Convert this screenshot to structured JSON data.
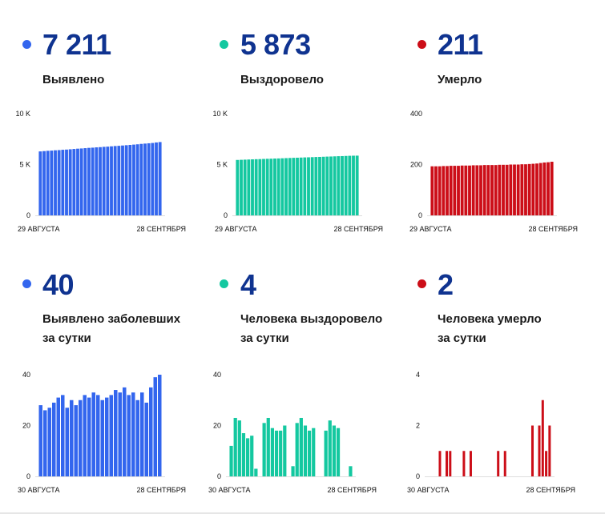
{
  "panels": [
    {
      "value": "7 211",
      "label1": "Выявлено",
      "label2": "",
      "color": "#3366ee",
      "chart_data": {
        "type": "bar",
        "y_ticks": [
          "10 K",
          "5 K",
          "0"
        ],
        "ylim": [
          0,
          10000
        ],
        "x_labels": [
          "29 АВГУСТА",
          "28 СЕНТЯБРЯ"
        ],
        "values": [
          6290,
          6320,
          6350,
          6370,
          6400,
          6420,
          6450,
          6470,
          6500,
          6530,
          6560,
          6580,
          6610,
          6640,
          6660,
          6690,
          6710,
          6740,
          6760,
          6790,
          6820,
          6840,
          6870,
          6900,
          6930,
          6960,
          6990,
          7030,
          7060,
          7090,
          7120,
          7171,
          7211
        ]
      }
    },
    {
      "value": "5 873",
      "label1": "Выздоровело",
      "label2": "",
      "color": "#14c8a0",
      "chart_data": {
        "type": "bar",
        "y_ticks": [
          "10 K",
          "5 K",
          "0"
        ],
        "ylim": [
          0,
          10000
        ],
        "x_labels": [
          "29 АВГУСТА",
          "28 СЕНТЯБРЯ"
        ],
        "values": [
          5450,
          5465,
          5480,
          5495,
          5510,
          5525,
          5535,
          5550,
          5565,
          5575,
          5590,
          5600,
          5615,
          5630,
          5645,
          5660,
          5670,
          5685,
          5700,
          5710,
          5725,
          5740,
          5750,
          5765,
          5780,
          5790,
          5805,
          5820,
          5830,
          5845,
          5860,
          5869,
          5873
        ]
      }
    },
    {
      "value": "211",
      "label1": "Умерло",
      "label2": "",
      "color": "#cc0e18",
      "chart_data": {
        "type": "bar",
        "y_ticks": [
          "400",
          "200",
          "0"
        ],
        "ylim": [
          0,
          400
        ],
        "x_labels": [
          "29 АВГУСТА",
          "28 СЕНТЯБРЯ"
        ],
        "values": [
          193,
          193,
          193,
          194,
          194,
          195,
          195,
          195,
          196,
          196,
          196,
          197,
          197,
          197,
          198,
          198,
          198,
          198,
          199,
          199,
          199,
          200,
          200,
          200,
          201,
          201,
          202,
          203,
          204,
          206,
          208,
          209,
          211
        ]
      }
    },
    {
      "value": "40",
      "label1": "Выявлено заболевших",
      "label2": "за сутки",
      "color": "#3366ee",
      "chart_data": {
        "type": "bar",
        "y_ticks": [
          "40",
          "20",
          "0"
        ],
        "ylim": [
          0,
          40
        ],
        "x_labels": [
          "30 АВГУСТА",
          "28 СЕНТЯБРЯ"
        ],
        "values": [
          28,
          26,
          27,
          29,
          31,
          32,
          27,
          30,
          28,
          30,
          32,
          31,
          33,
          32,
          30,
          31,
          32,
          34,
          33,
          35,
          32,
          33,
          30,
          33,
          29,
          35,
          39,
          40
        ]
      }
    },
    {
      "value": "4",
      "label1": "Человека выздоровело",
      "label2": "за сутки",
      "color": "#14c8a0",
      "chart_data": {
        "type": "bar",
        "y_ticks": [
          "40",
          "20",
          "0"
        ],
        "ylim": [
          0,
          40
        ],
        "x_labels": [
          "30 АВГУСТА",
          "28 СЕНТЯБРЯ"
        ],
        "values": [
          12,
          23,
          22,
          17,
          15,
          16,
          3,
          0,
          21,
          23,
          19,
          18,
          18,
          20,
          0,
          4,
          21,
          23,
          20,
          18,
          19,
          0,
          0,
          18,
          22,
          20,
          19,
          0,
          0,
          4
        ]
      }
    },
    {
      "value": "2",
      "label1": "Человека умерло",
      "label2": "за сутки",
      "color": "#cc0e18",
      "chart_data": {
        "type": "bar",
        "y_ticks": [
          "4",
          "2",
          "0"
        ],
        "ylim": [
          0,
          4
        ],
        "x_labels": [
          "30 АВГУСТА",
          "28 СЕНТЯБРЯ"
        ],
        "values": [
          0,
          0,
          0,
          1,
          0,
          1,
          1,
          0,
          0,
          0,
          1,
          0,
          1,
          0,
          0,
          0,
          0,
          0,
          0,
          0,
          1,
          0,
          1,
          0,
          0,
          0,
          0,
          0,
          0,
          0,
          2,
          0,
          2,
          3,
          1,
          2
        ]
      }
    }
  ]
}
